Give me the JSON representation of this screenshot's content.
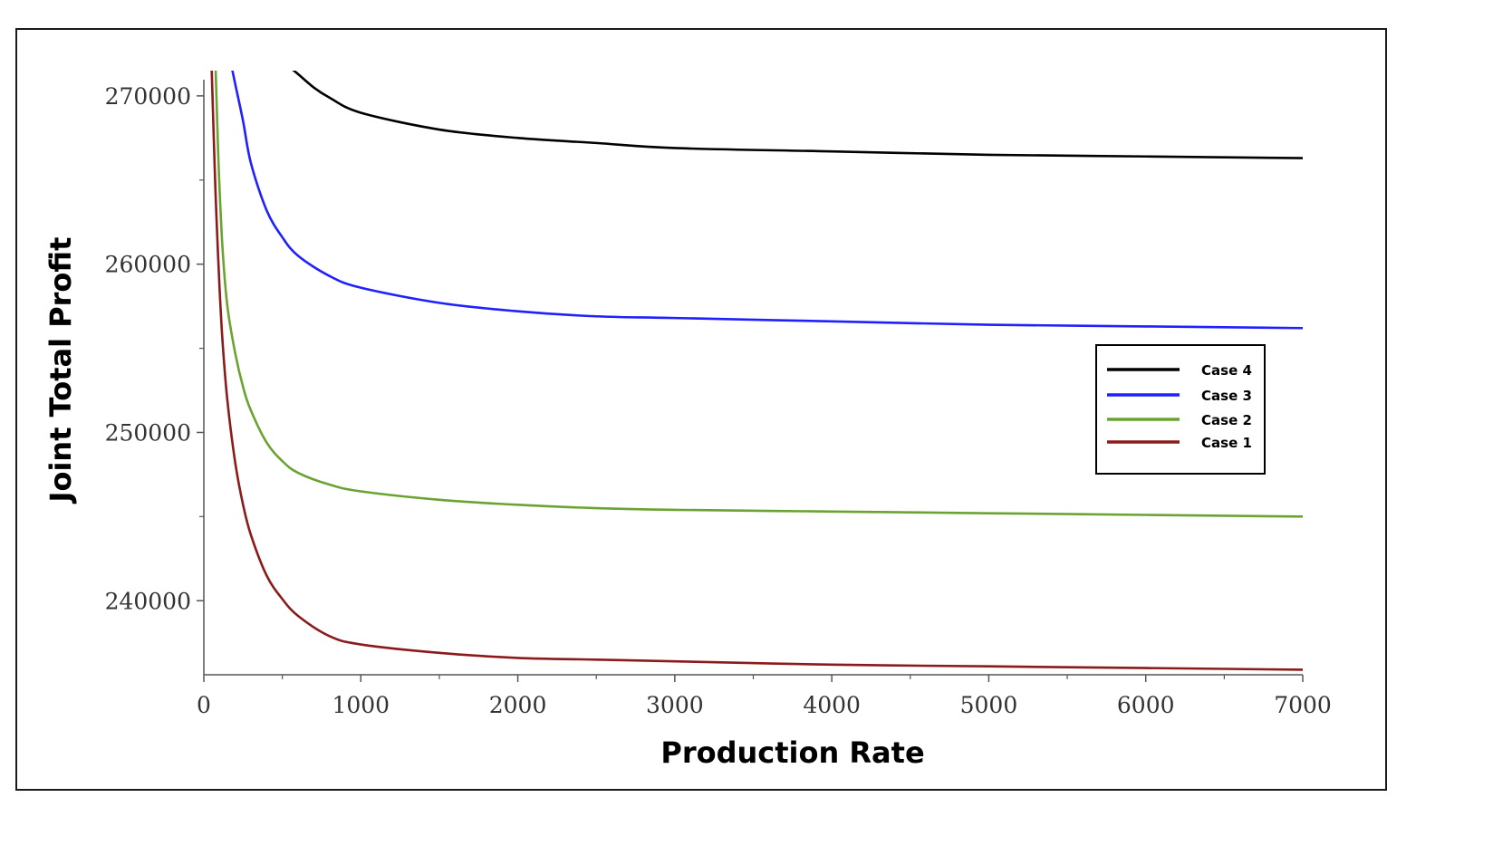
{
  "chart_data": {
    "type": "line",
    "title": "",
    "xlabel": "Production Rate",
    "ylabel": "Joint Total Profit",
    "xlim": [
      0,
      7000
    ],
    "ylim": [
      235600,
      271500
    ],
    "x_ticks": [
      0,
      1000,
      2000,
      3000,
      4000,
      5000,
      6000,
      7000
    ],
    "x_tick_labels": [
      "0",
      "1000",
      "2000",
      "3000",
      "4000",
      "5000",
      "6000",
      "7000"
    ],
    "y_ticks": [
      240000,
      250000,
      260000,
      270000
    ],
    "y_tick_labels": [
      "240000",
      "250000",
      "260000",
      "270000"
    ],
    "grid": false,
    "legend_position": "right",
    "series": [
      {
        "name": "Case 4",
        "color": "#000000",
        "x": [
          560,
          600,
          700,
          800,
          1000,
          1500,
          2000,
          2500,
          3000,
          4000,
          5000,
          6000,
          7000
        ],
        "values": [
          271600,
          271300,
          270500,
          269900,
          269000,
          268000,
          267500,
          267200,
          266900,
          266700,
          266500,
          266400,
          266300
        ]
      },
      {
        "name": "Case 3",
        "color": "#1f1fff",
        "x": [
          180,
          200,
          250,
          300,
          400,
          500,
          600,
          800,
          1000,
          1500,
          2000,
          2500,
          3000,
          4000,
          5000,
          6000,
          7000
        ],
        "values": [
          271600,
          270700,
          268500,
          266000,
          263200,
          261600,
          260500,
          259300,
          258600,
          257700,
          257200,
          256900,
          256800,
          256600,
          256400,
          256300,
          256200
        ]
      },
      {
        "name": "Case 2",
        "color": "#6aa332",
        "x": [
          75,
          90,
          100,
          120,
          150,
          200,
          250,
          300,
          400,
          500,
          600,
          800,
          1000,
          1500,
          2000,
          2500,
          3000,
          4000,
          5000,
          6000,
          7000
        ],
        "values": [
          271600,
          267000,
          264500,
          260800,
          257500,
          254700,
          252700,
          251300,
          249400,
          248300,
          247600,
          246900,
          246500,
          246000,
          245700,
          245500,
          245400,
          245300,
          245200,
          245100,
          245000
        ]
      },
      {
        "name": "Case 1",
        "color": "#8b1a1a",
        "x": [
          50,
          60,
          70,
          80,
          100,
          120,
          150,
          200,
          250,
          300,
          400,
          500,
          600,
          800,
          1000,
          1500,
          2000,
          2500,
          3000,
          4000,
          5000,
          6000,
          7000
        ],
        "values": [
          271600,
          268500,
          265500,
          262900,
          258600,
          255300,
          251900,
          248200,
          245700,
          243900,
          241500,
          240100,
          239100,
          237900,
          237400,
          236900,
          236600,
          236500,
          236400,
          236200,
          236100,
          236000,
          235900
        ]
      }
    ]
  }
}
